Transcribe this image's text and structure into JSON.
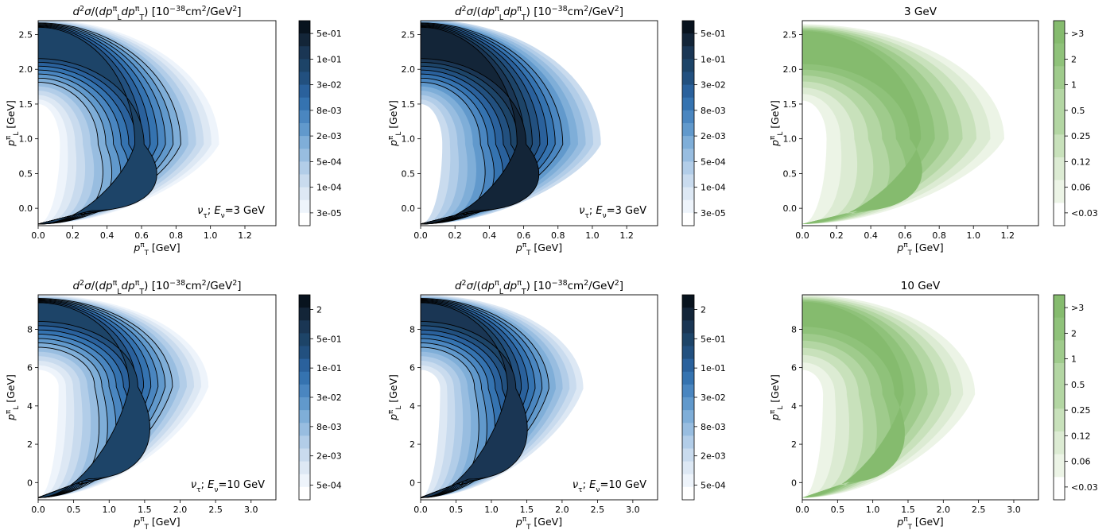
{
  "figure": {
    "panels": [
      {
        "id": "p1",
        "kind": "blue",
        "title": "d²σ/(dp_L^π dp_T^π)  [10⁻³⁸cm²/GeV²]",
        "xlabel": "p_T^π [GeV]",
        "ylabel": "p_L^π [GeV]",
        "xlim": [
          0,
          1.38
        ],
        "ylim": [
          -0.25,
          2.7
        ],
        "xticks": [
          "0.0",
          "0.2",
          "0.4",
          "0.6",
          "0.8",
          "1.0",
          "1.2"
        ],
        "yticks": [
          "0.0",
          "0.5",
          "1.0",
          "1.5",
          "2.0",
          "2.5"
        ],
        "annotation": "ν_τ; E_ν=3 GeV",
        "colorbar": [
          "5e-01",
          "1e-01",
          "3e-02",
          "8e-03",
          "2e-03",
          "5e-04",
          "1e-04",
          "3e-05"
        ],
        "shape": {
          "Emax": 2.72,
          "xc": 1.05,
          "ymid": 0.92,
          "lowercut": 1.5
        },
        "color_shift": 0
      },
      {
        "id": "p2",
        "kind": "blue",
        "title": "d²σ/(dp_L^π dp_T^π)  [10⁻³⁸cm²/GeV²]",
        "xlabel": "p_T^π [GeV]",
        "ylabel": "p_L^π [GeV]",
        "xlim": [
          0,
          1.38
        ],
        "ylim": [
          -0.25,
          2.7
        ],
        "xticks": [
          "0.0",
          "0.2",
          "0.4",
          "0.6",
          "0.8",
          "1.0",
          "1.2"
        ],
        "yticks": [
          "0.0",
          "0.5",
          "1.0",
          "1.5",
          "2.0",
          "2.5"
        ],
        "annotation": "ν_τ; E_ν=3 GeV",
        "colorbar": [
          "5e-01",
          "1e-01",
          "3e-02",
          "8e-03",
          "2e-03",
          "5e-04",
          "1e-04",
          "3e-05"
        ],
        "shape": {
          "Emax": 2.72,
          "xc": 1.05,
          "ymid": 0.92,
          "lowercut": 1.5
        },
        "color_shift": 2
      },
      {
        "id": "p3",
        "kind": "green",
        "title": "3 GeV",
        "xlabel": "p_T^π [GeV]",
        "ylabel": "p_L^π [GeV]",
        "xlim": [
          0,
          1.38
        ],
        "ylim": [
          -0.25,
          2.7
        ],
        "xticks": [
          "0.0",
          "0.2",
          "0.4",
          "0.6",
          "0.8",
          "1.0",
          "1.2"
        ],
        "yticks": [
          "0.0",
          "0.5",
          "1.0",
          "1.5",
          "2.0",
          "2.5"
        ],
        "annotation": "",
        "colorbar": [
          ">3",
          "2",
          "1",
          "0.5",
          "0.25",
          "0.12",
          "0.06",
          "<0.03"
        ],
        "shape": {
          "Emax": 2.65,
          "xc": 1.18,
          "ymid": 1.0,
          "lowercut": 1.55
        },
        "color_shift": 0
      },
      {
        "id": "p4",
        "kind": "blue",
        "title": "d²σ/(dp_L^π dp_T^π)  [10⁻³⁸cm²/GeV²]",
        "xlabel": "p_T^π [GeV]",
        "ylabel": "p_L^π [GeV]",
        "xlim": [
          0,
          3.35
        ],
        "ylim": [
          -0.9,
          9.8
        ],
        "xticks": [
          "0.0",
          "0.5",
          "1.0",
          "1.5",
          "2.0",
          "2.5",
          "3.0"
        ],
        "yticks": [
          "0",
          "2",
          "4",
          "6",
          "8"
        ],
        "annotation": "ν_τ; E_ν=10 GeV",
        "colorbar": [
          "2",
          "5e-01",
          "1e-01",
          "3e-02",
          "8e-03",
          "2e-03",
          "5e-04"
        ],
        "shape": {
          "Emax": 9.8,
          "xc": 2.4,
          "ymid": 5.0,
          "lowercut": 0
        },
        "color_shift": 0
      },
      {
        "id": "p5",
        "kind": "blue",
        "title": "d²σ/(dp_L^π dp_T^π)  [10⁻³⁸cm²/GeV²]",
        "xlabel": "p_T^π [GeV]",
        "ylabel": "p_L^π [GeV]",
        "xlim": [
          0,
          3.35
        ],
        "ylim": [
          -0.9,
          9.8
        ],
        "xticks": [
          "0.0",
          "0.5",
          "1.0",
          "1.5",
          "2.0",
          "2.5",
          "3.0"
        ],
        "yticks": [
          "0",
          "2",
          "4",
          "6",
          "8"
        ],
        "annotation": "ν_τ; E_ν=10 GeV",
        "colorbar": [
          "2",
          "5e-01",
          "1e-01",
          "3e-02",
          "8e-03",
          "2e-03",
          "5e-04"
        ],
        "shape": {
          "Emax": 9.8,
          "xc": 2.3,
          "ymid": 4.9,
          "lowercut": 0
        },
        "color_shift": 1
      },
      {
        "id": "p6",
        "kind": "green",
        "title": "10 GeV",
        "xlabel": "p_T^π [GeV]",
        "ylabel": "p_L^π [GeV]",
        "xlim": [
          0,
          3.35
        ],
        "ylim": [
          -0.9,
          9.8
        ],
        "xticks": [
          "0.0",
          "0.5",
          "1.0",
          "1.5",
          "2.0",
          "2.5",
          "3.0"
        ],
        "yticks": [
          "0",
          "2",
          "4",
          "6",
          "8"
        ],
        "annotation": "",
        "colorbar": [
          ">3",
          "2",
          "1",
          "0.5",
          "0.25",
          "0.12",
          "0.06",
          "<0.03"
        ],
        "shape": {
          "Emax": 9.8,
          "xc": 2.45,
          "ymid": 4.6,
          "lowercut": 0
        },
        "color_shift": 0
      }
    ]
  },
  "colors": {
    "blue_ramp": [
      "#ffffff",
      "#eef4fb",
      "#dde8f4",
      "#c9dbee",
      "#b2cde8",
      "#98bde0",
      "#7faed8",
      "#6199cc",
      "#4a86c0",
      "#3573b0",
      "#2a619c",
      "#22507f",
      "#1d4468",
      "#1a3654",
      "#132538",
      "#08131e"
    ],
    "green_ramp": [
      "#ffffff",
      "#ecf4e6",
      "#dcebd3",
      "#c8e1bb",
      "#b3d6a3",
      "#9fcb8c",
      "#8fc27a",
      "#85bb6e"
    ],
    "contour": "#000000"
  }
}
